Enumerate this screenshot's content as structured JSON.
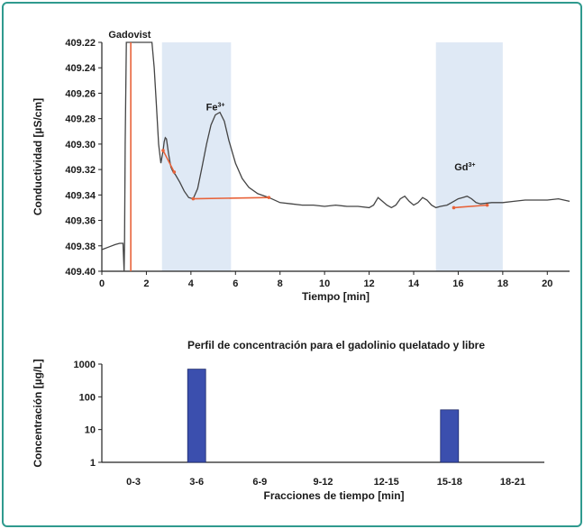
{
  "colors": {
    "frame": "#2f9a8e",
    "shade": "#dfe9f5",
    "trace": "#444444",
    "marker": "#e8633a",
    "bar": "#3b4fae",
    "bar_edge": "#1e2a6b"
  },
  "chart_data": [
    {
      "type": "line",
      "title": "",
      "xlabel": "Tiempo [min]",
      "ylabel": "Conductividad [µS/cm]",
      "xlim": [
        0,
        21
      ],
      "ylim": [
        409.22,
        409.4
      ],
      "y_inverted": true,
      "x_ticks": [
        0,
        2,
        4,
        6,
        8,
        10,
        12,
        14,
        16,
        18,
        20
      ],
      "y_ticks": [
        "409.22",
        "409.24",
        "409.26",
        "409.28",
        "409.30",
        "409.32",
        "409.34",
        "409.36",
        "409.38",
        "409.40"
      ],
      "grid": false,
      "shaded_regions": [
        [
          2.7,
          5.8
        ],
        [
          15.0,
          18.0
        ]
      ],
      "annotations": [
        {
          "text": "Gadovist",
          "x": 1.25,
          "y": 409.22
        },
        {
          "text": "Fe",
          "sup": "3+",
          "x": 5.1,
          "y": 409.277
        },
        {
          "text": "Gd",
          "sup": "3+",
          "x": 16.3,
          "y": 409.324
        }
      ],
      "series": [
        {
          "x": [
            0.0,
            0.3,
            0.6,
            0.8,
            0.95,
            1.0,
            1.02,
            1.05,
            1.1,
            2.25,
            2.35,
            2.45,
            2.55,
            2.65,
            2.75,
            2.8,
            2.85,
            2.9,
            3.0,
            3.1,
            3.2,
            3.3,
            3.5,
            3.7,
            3.9,
            4.1,
            4.3,
            4.5,
            4.7,
            4.9,
            5.1,
            5.3,
            5.5,
            5.7,
            6.0,
            6.3,
            6.6,
            7.0,
            7.5,
            8.0,
            8.5,
            9.0,
            9.5,
            10.0,
            10.5,
            11.0,
            11.5,
            12.0,
            12.2,
            12.4,
            12.6,
            12.8,
            13.0,
            13.2,
            13.4,
            13.6,
            13.8,
            14.0,
            14.2,
            14.4,
            14.6,
            14.8,
            15.0,
            15.2,
            15.5,
            15.8,
            16.0,
            16.2,
            16.4,
            16.6,
            16.8,
            17.0,
            17.5,
            18.0,
            18.5,
            19.0,
            19.5,
            20.0,
            20.5,
            21.0
          ],
          "y": [
            409.383,
            409.381,
            409.379,
            409.378,
            409.378,
            409.4,
            409.378,
            409.3,
            409.22,
            409.22,
            409.24,
            409.27,
            409.3,
            409.315,
            409.305,
            409.298,
            409.295,
            409.296,
            409.308,
            409.318,
            409.322,
            409.324,
            409.33,
            409.337,
            409.342,
            409.343,
            409.335,
            409.318,
            409.3,
            409.285,
            409.277,
            409.275,
            409.282,
            409.297,
            409.315,
            409.327,
            409.334,
            409.339,
            409.342,
            409.346,
            409.347,
            409.348,
            409.348,
            409.349,
            409.348,
            409.349,
            409.349,
            409.35,
            409.348,
            409.342,
            409.345,
            409.348,
            409.35,
            409.348,
            409.343,
            409.341,
            409.345,
            409.348,
            409.346,
            409.342,
            409.344,
            409.348,
            409.35,
            409.349,
            409.348,
            409.345,
            409.343,
            409.342,
            409.341,
            409.343,
            409.346,
            409.347,
            409.346,
            409.346,
            409.345,
            409.344,
            409.344,
            409.344,
            409.343,
            409.345
          ]
        }
      ],
      "marker_lines": [
        {
          "x": [
            1.3,
            1.3
          ],
          "y": [
            409.22,
            409.4
          ]
        },
        {
          "x": [
            2.75,
            3.25
          ],
          "y": [
            409.305,
            409.322
          ]
        },
        {
          "x": [
            4.1,
            7.5
          ],
          "y": [
            409.343,
            409.342
          ]
        },
        {
          "x": [
            15.8,
            17.3
          ],
          "y": [
            409.35,
            409.348
          ]
        }
      ]
    },
    {
      "type": "bar",
      "title": "Perfil de concentración para el gadolinio quelatado y libre",
      "xlabel": "Fracciones de tiempo [min]",
      "ylabel": "Concentración [µg/L]",
      "yscale": "log",
      "ylim": [
        1,
        1000
      ],
      "y_ticks": [
        "1",
        "10",
        "100",
        "1000"
      ],
      "categories": [
        "0-3",
        "3-6",
        "6-9",
        "9-12",
        "12-15",
        "15-18",
        "18-21"
      ],
      "values": [
        null,
        700,
        null,
        null,
        null,
        40,
        null
      ]
    }
  ]
}
